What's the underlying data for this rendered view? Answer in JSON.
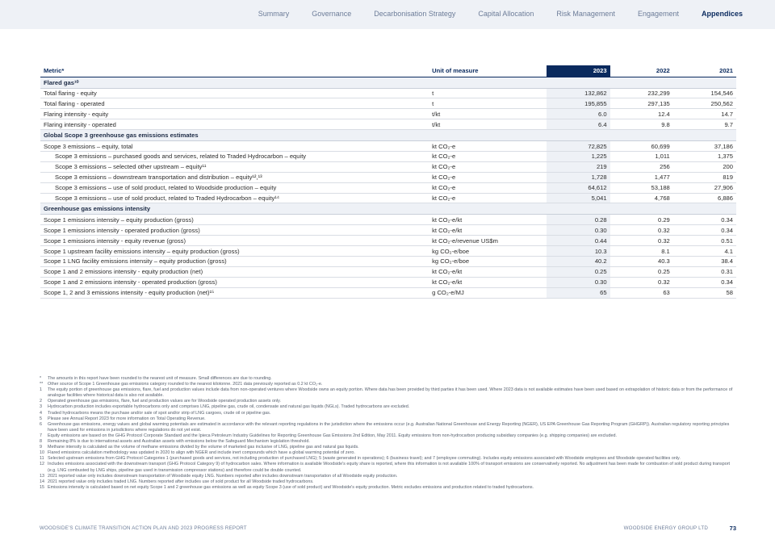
{
  "nav": [
    "Summary",
    "Governance",
    "Decarbonisation Strategy",
    "Capital Allocation",
    "Risk Management",
    "Engagement",
    "Appendices"
  ],
  "table": {
    "headers": {
      "metric": "Metric*",
      "unit": "Unit of measure",
      "y2023": "2023",
      "y2022": "2022",
      "y2021": "2021"
    },
    "sections": [
      {
        "title": "Flared gas¹⁰",
        "rows": [
          {
            "metric": "Total flaring - equity",
            "unit": "t",
            "v2023": "132,862",
            "v2022": "232,299",
            "v2021": "154,546",
            "indent": false
          },
          {
            "metric": "Total flaring - operated",
            "unit": "t",
            "v2023": "195,855",
            "v2022": "297,135",
            "v2021": "250,562",
            "indent": false
          },
          {
            "metric": "Flaring intensity - equity",
            "unit": "t/kt",
            "v2023": "6.0",
            "v2022": "12.4",
            "v2021": "14.7",
            "indent": false
          },
          {
            "metric": "Flaring intensity - operated",
            "unit": "t/kt",
            "v2023": "6.4",
            "v2022": "9.8",
            "v2021": "9.7",
            "indent": false
          }
        ]
      },
      {
        "title": "Global Scope 3 greenhouse gas emissions estimates",
        "rows": [
          {
            "metric": "Scope 3 emissions – equity, total",
            "unit": "kt CO₂-e",
            "v2023": "72,825",
            "v2022": "60,699",
            "v2021": "37,186",
            "indent": false
          },
          {
            "metric": "Scope 3 emissions – purchased goods and services, related to Traded Hydrocarbon – equity",
            "unit": "kt CO₂-e",
            "v2023": "1,225",
            "v2022": "1,011",
            "v2021": "1,375",
            "indent": true
          },
          {
            "metric": "Scope 3 emissions – selected other upstream – equity¹¹",
            "unit": "kt CO₂-e",
            "v2023": "219",
            "v2022": "256",
            "v2021": "200",
            "indent": true
          },
          {
            "metric": "Scope 3 emissions – downstream transportation and distribution – equity¹²,¹³",
            "unit": "kt CO₂-e",
            "v2023": "1,728",
            "v2022": "1,477",
            "v2021": "819",
            "indent": true
          },
          {
            "metric": "Scope 3 emissions – use of sold product, related to Woodside production – equity",
            "unit": "kt CO₂-e",
            "v2023": "64,612",
            "v2022": "53,188",
            "v2021": "27,906",
            "indent": true
          },
          {
            "metric": "Scope 3 emissions – use of sold product, related to Traded Hydrocarbon – equity¹⁴",
            "unit": "kt CO₂-e",
            "v2023": "5,041",
            "v2022": "4,768",
            "v2021": "6,886",
            "indent": true
          }
        ]
      },
      {
        "title": "Greenhouse gas emissions intensity",
        "rows": [
          {
            "metric": "Scope 1 emissions intensity – equity production (gross)",
            "unit": "kt CO₂-e/kt",
            "v2023": "0.28",
            "v2022": "0.29",
            "v2021": "0.34",
            "indent": false
          },
          {
            "metric": "Scope 1 emissions intensity - operated production (gross)",
            "unit": "kt CO₂-e/kt",
            "v2023": "0.30",
            "v2022": "0.32",
            "v2021": "0.34",
            "indent": false
          },
          {
            "metric": "Scope 1 emissions intensity - equity revenue (gross)",
            "unit": "kt CO₂-e/revenue US$m",
            "v2023": "0.44",
            "v2022": "0.32",
            "v2021": "0.51",
            "indent": false
          },
          {
            "metric": "Scope 1 upstream facility emissions intensity – equity production (gross)",
            "unit": "kg CO₂-e/boe",
            "v2023": "10.3",
            "v2022": "8.1",
            "v2021": "4.1",
            "indent": false
          },
          {
            "metric": "Scope 1 LNG facility emissions intensity – equity production (gross)",
            "unit": "kg CO₂-e/boe",
            "v2023": "40.2",
            "v2022": "40.3",
            "v2021": "38.4",
            "indent": false
          },
          {
            "metric": "Scope 1 and 2 emissions intensity - equity production (net)",
            "unit": "kt CO₂-e/kt",
            "v2023": "0.25",
            "v2022": "0.25",
            "v2021": "0.31",
            "indent": false
          },
          {
            "metric": "Scope 1 and 2 emissions intensity - operated production (gross)",
            "unit": "kt CO₂-e/kt",
            "v2023": "0.30",
            "v2022": "0.32",
            "v2021": "0.34",
            "indent": false
          },
          {
            "metric": "Scope 1, 2 and 3 emissions intensity - equity production (net)¹⁵",
            "unit": "g CO₂-e/MJ",
            "v2023": "65",
            "v2022": "63",
            "v2021": "58",
            "indent": false
          }
        ]
      }
    ]
  },
  "footnotes": [
    {
      "mark": "*",
      "text": "The amounts in this report have been rounded to the nearest unit of measure. Small differences are due to rounding."
    },
    {
      "mark": "**",
      "text": "Other source of Scope 1 Greenhouse gas emissions category rounded to the nearest kilotonne. 2021 data previously reported as 0.2 kt CO₂-e."
    },
    {
      "mark": "1",
      "text": "The equity portion of greenhouse gas emissions, flare, fuel and production values include data from non-operated ventures where Woodside owns an equity portion. Where data has been provided by third parties it has been used. Where 2023 data is not available estimates have been used based on extrapolation of historic data or from the performance of analogue facilities where historical data is also not available."
    },
    {
      "mark": "2",
      "text": "Operated greenhouse gas emissions, flare, fuel and production values are for Woodside operated production assets only."
    },
    {
      "mark": "3",
      "text": "Hydrocarbon production includes exportable hydrocarbons only and comprises LNG, pipeline gas, crude oil, condensate and natural gas liquids (NGLs). Traded hydrocarbons are excluded."
    },
    {
      "mark": "4",
      "text": "Traded hydrocarbons means the purchase and/or sale of spot and/or strip of LNG cargoes, crude oil or pipeline gas."
    },
    {
      "mark": "5",
      "text": "Please see Annual Report 2023 for more information on Total Operating Revenue."
    },
    {
      "mark": "6",
      "text": "Greenhouse gas emissions, energy values and global warming potentials are estimated in accordance with the relevant reporting regulations in the jurisdiction where the emissions occur (e.g. Australian National Greenhouse and Energy Reporting (NGER), US EPA Greenhouse Gas Reporting Program (GHGRP)). Australian regulatory reporting principles have been used for emissions in jurisdictions where regulations do not yet exist."
    },
    {
      "mark": "7",
      "text": "Equity emissions are based on the GHG Protocol Corporate Standard and the Ipieca Petroleum Industry Guidelines for Reporting Greenhouse Gas Emissions 2nd Edition, May 2011. Equity emissions from non-hydrocarbon producing subsidiary companies (e.g. shipping companies) are excluded."
    },
    {
      "mark": "8",
      "text": "Remaining 8% is due to international assets and Australian assets with emissions below the Safeguard Mechanism legislation threshold."
    },
    {
      "mark": "9",
      "text": "Methane intensity is calculated as the volume of methane emissions divided by the volume of marketed gas inclusive of LNG, pipeline gas and natural gas liquids."
    },
    {
      "mark": "10",
      "text": "Flared emissions calculation methodology was updated in 2020 to align with NGER and include inert compounds which have a global warming potential of zero."
    },
    {
      "mark": "11",
      "text": "Selected upstream emissions from GHG Protocol Categories 1 (purchased goods and services, not including production of purchased LNG); 5 (waste generated in operations); 6 (business travel); and 7 (employee commuting). Includes equity emissions associated with Woodside employees and Woodside operated facilities only."
    },
    {
      "mark": "12",
      "text": "Includes emissions associated with the downstream transport (GHG Protocol Category 9) of hydrocarbon sales. Where information is available Woodside's equity share is reported, where this information is not available 100% of transport emissions are conservatively reported. No adjustment has been made for combustion of sold product during transport (e.g. LNG combusted by LNG ships, pipeline gas used in transmission compressor stations) and therefore could be double counted."
    },
    {
      "mark": "13",
      "text": "2021 reported value only includes downstream transportation of Woodside equity LNG. Numbers reported after includes downstream transportation of all Woodside equity production."
    },
    {
      "mark": "14",
      "text": "2021 reported value only includes traded LNG. Numbers reported after includes use of sold product for all Woodside traded hydrocarbons."
    },
    {
      "mark": "15",
      "text": "Emissions intensity is calculated based on net equity Scope 1 and 2 greenhouse gas emissions as well as equity Scope 3 (use of sold product) and Woodside's equity production. Metric excludes emissions and production related to traded hydrocarbons."
    }
  ],
  "footer": {
    "left": "WOODSIDE'S CLIMATE TRANSITION ACTION PLAN AND 2023 PROGRESS REPORT",
    "right": "WOODSIDE ENERGY GROUP LTD",
    "page": "73"
  },
  "colors": {
    "navy": "#0a2a5e",
    "section_bg": "#eef1f6",
    "nav_text": "#6d7d99"
  }
}
